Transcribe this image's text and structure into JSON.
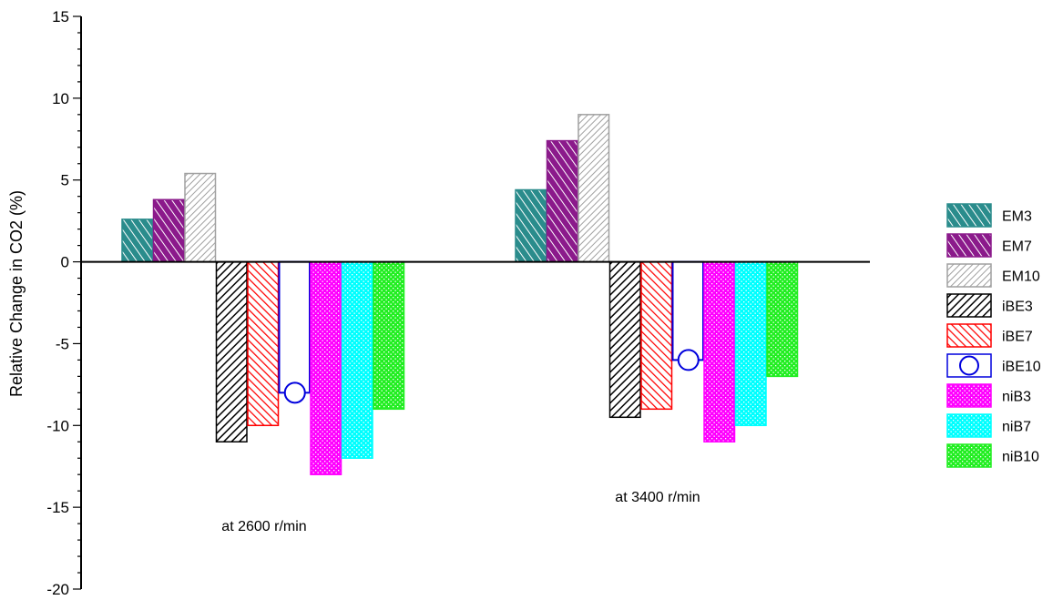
{
  "chart_data": {
    "type": "bar",
    "title": "",
    "xlabel": "",
    "ylabel": "Relative Change in CO2 (%)",
    "ylim": [
      -20,
      15
    ],
    "yticks": [
      15,
      10,
      5,
      0,
      -5,
      -10,
      -15,
      -20
    ],
    "grid": false,
    "legend_position": "right",
    "categories": [
      "at 2600 r/min",
      "at 3400 r/min"
    ],
    "series": [
      {
        "name": "EM3",
        "values": [
          2.6,
          4.4
        ],
        "color": "#2a8c8c",
        "pattern": "diag-teal"
      },
      {
        "name": "EM7",
        "values": [
          3.8,
          7.4
        ],
        "color": "#8b1a8b",
        "pattern": "diag-purple"
      },
      {
        "name": "EM10",
        "values": [
          5.4,
          9.0
        ],
        "color": "#a0a0a0",
        "pattern": "diag-gray"
      },
      {
        "name": "iBE3",
        "values": [
          -11.0,
          -9.5
        ],
        "color": "#000000",
        "pattern": "fwd-black"
      },
      {
        "name": "iBE7",
        "values": [
          -10.0,
          -9.0
        ],
        "color": "#ff0000",
        "pattern": "back-red"
      },
      {
        "name": "iBE10",
        "values": [
          -8.0,
          -6.0
        ],
        "color": "#0000dd",
        "pattern": "circle-blue"
      },
      {
        "name": "niB3",
        "values": [
          -13.0,
          -11.0
        ],
        "color": "#ff00ff",
        "pattern": "dots-magenta"
      },
      {
        "name": "niB7",
        "values": [
          -12.0,
          -10.0
        ],
        "color": "#00ffff",
        "pattern": "dots-cyan"
      },
      {
        "name": "niB10",
        "values": [
          -9.0,
          -7.0
        ],
        "color": "#22ee22",
        "pattern": "dots-green"
      }
    ]
  }
}
